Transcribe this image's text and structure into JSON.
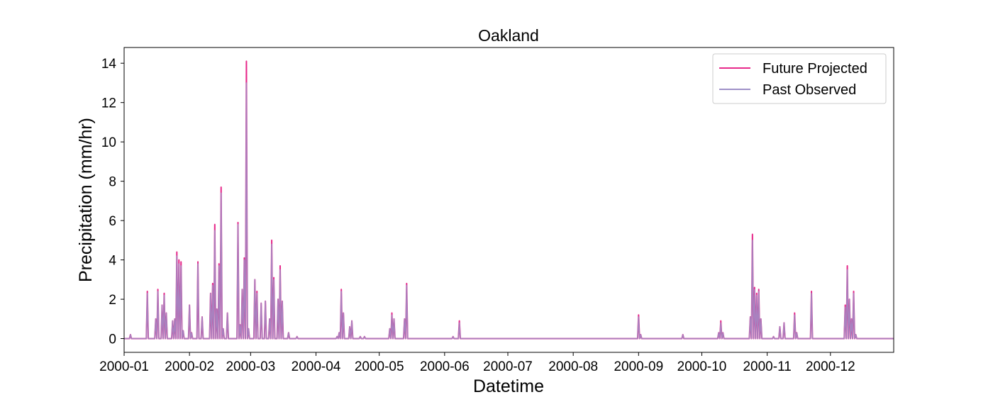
{
  "chart_data": {
    "type": "line",
    "title": "Oakland",
    "xlabel": "Datetime",
    "ylabel": "Precipitation (mm/hr)",
    "x_axis": {
      "type": "date",
      "range": [
        "2000-01-01",
        "2000-12-31"
      ],
      "tick_labels": [
        "2000-01",
        "2000-02",
        "2000-03",
        "2000-04",
        "2000-05",
        "2000-06",
        "2000-07",
        "2000-08",
        "2000-09",
        "2000-10",
        "2000-11",
        "2000-12"
      ]
    },
    "y_axis": {
      "range": [
        -0.7,
        14.8
      ],
      "ticks": [
        0,
        2,
        4,
        6,
        8,
        10,
        12,
        14
      ]
    },
    "grid": false,
    "legend": {
      "placement": "top-right"
    },
    "series": [
      {
        "name": "Future Projected",
        "color": "#e7298a",
        "spikes": [
          [
            "2000-01-04",
            0.2
          ],
          [
            "2000-01-12",
            2.4
          ],
          [
            "2000-01-16",
            1.0
          ],
          [
            "2000-01-17",
            2.5
          ],
          [
            "2000-01-19",
            1.7
          ],
          [
            "2000-01-20",
            2.3
          ],
          [
            "2000-01-21",
            1.3
          ],
          [
            "2000-01-24",
            0.9
          ],
          [
            "2000-01-25",
            1.0
          ],
          [
            "2000-01-26",
            4.4
          ],
          [
            "2000-01-27",
            4.0
          ],
          [
            "2000-01-28",
            3.9
          ],
          [
            "2000-01-29",
            0.4
          ],
          [
            "2000-02-01",
            1.7
          ],
          [
            "2000-02-02",
            0.3
          ],
          [
            "2000-02-05",
            3.9
          ],
          [
            "2000-02-07",
            1.1
          ],
          [
            "2000-02-11",
            2.3
          ],
          [
            "2000-02-12",
            2.8
          ],
          [
            "2000-02-13",
            5.8
          ],
          [
            "2000-02-14",
            1.5
          ],
          [
            "2000-02-15",
            3.8
          ],
          [
            "2000-02-16",
            7.7
          ],
          [
            "2000-02-17",
            0.5
          ],
          [
            "2000-02-19",
            1.3
          ],
          [
            "2000-02-24",
            5.9
          ],
          [
            "2000-02-25",
            0.7
          ],
          [
            "2000-02-26",
            2.5
          ],
          [
            "2000-02-27",
            4.1
          ],
          [
            "2000-02-28",
            14.1
          ],
          [
            "2000-02-29",
            0.5
          ],
          [
            "2000-03-03",
            3.0
          ],
          [
            "2000-03-04",
            2.4
          ],
          [
            "2000-03-06",
            1.8
          ],
          [
            "2000-03-08",
            1.9
          ],
          [
            "2000-03-10",
            1.0
          ],
          [
            "2000-03-11",
            5.0
          ],
          [
            "2000-03-12",
            3.1
          ],
          [
            "2000-03-14",
            2.0
          ],
          [
            "2000-03-15",
            3.7
          ],
          [
            "2000-03-16",
            1.9
          ],
          [
            "2000-03-19",
            0.3
          ],
          [
            "2000-03-23",
            0.1
          ],
          [
            "2000-04-11",
            0.1
          ],
          [
            "2000-04-12",
            0.3
          ],
          [
            "2000-04-13",
            2.5
          ],
          [
            "2000-04-14",
            1.3
          ],
          [
            "2000-04-17",
            0.6
          ],
          [
            "2000-04-18",
            0.9
          ],
          [
            "2000-04-22",
            0.1
          ],
          [
            "2000-04-24",
            0.1
          ],
          [
            "2000-05-06",
            0.5
          ],
          [
            "2000-05-07",
            1.3
          ],
          [
            "2000-05-08",
            1.0
          ],
          [
            "2000-05-13",
            1.0
          ],
          [
            "2000-05-14",
            2.8
          ],
          [
            "2000-06-05",
            0.1
          ],
          [
            "2000-06-08",
            0.9
          ],
          [
            "2000-09-01",
            1.2
          ],
          [
            "2000-09-02",
            0.2
          ],
          [
            "2000-09-22",
            0.2
          ],
          [
            "2000-10-09",
            0.3
          ],
          [
            "2000-10-10",
            0.9
          ],
          [
            "2000-10-11",
            0.3
          ],
          [
            "2000-10-24",
            1.1
          ],
          [
            "2000-10-25",
            5.3
          ],
          [
            "2000-10-26",
            2.6
          ],
          [
            "2000-10-27",
            2.3
          ],
          [
            "2000-10-28",
            2.5
          ],
          [
            "2000-10-29",
            1.0
          ],
          [
            "2000-11-04",
            0.1
          ],
          [
            "2000-11-07",
            0.6
          ],
          [
            "2000-11-09",
            0.8
          ],
          [
            "2000-11-14",
            1.3
          ],
          [
            "2000-11-15",
            0.3
          ],
          [
            "2000-11-22",
            2.4
          ],
          [
            "2000-12-08",
            1.7
          ],
          [
            "2000-12-09",
            3.7
          ],
          [
            "2000-12-10",
            2.0
          ],
          [
            "2000-12-11",
            1.0
          ],
          [
            "2000-12-12",
            2.4
          ],
          [
            "2000-12-13",
            0.2
          ]
        ]
      },
      {
        "name": "Past Observed",
        "color": "#9e90c8",
        "spikes": [
          [
            "2000-01-04",
            0.2
          ],
          [
            "2000-01-12",
            2.3
          ],
          [
            "2000-01-16",
            1.0
          ],
          [
            "2000-01-17",
            2.4
          ],
          [
            "2000-01-19",
            1.7
          ],
          [
            "2000-01-20",
            2.2
          ],
          [
            "2000-01-21",
            1.3
          ],
          [
            "2000-01-24",
            0.9
          ],
          [
            "2000-01-25",
            1.0
          ],
          [
            "2000-01-26",
            4.2
          ],
          [
            "2000-01-27",
            3.8
          ],
          [
            "2000-01-28",
            3.7
          ],
          [
            "2000-01-29",
            0.4
          ],
          [
            "2000-02-01",
            1.7
          ],
          [
            "2000-02-02",
            0.3
          ],
          [
            "2000-02-05",
            3.8
          ],
          [
            "2000-02-07",
            1.1
          ],
          [
            "2000-02-11",
            2.3
          ],
          [
            "2000-02-12",
            2.7
          ],
          [
            "2000-02-13",
            5.5
          ],
          [
            "2000-02-14",
            1.5
          ],
          [
            "2000-02-15",
            3.7
          ],
          [
            "2000-02-16",
            7.4
          ],
          [
            "2000-02-17",
            0.5
          ],
          [
            "2000-02-19",
            1.3
          ],
          [
            "2000-02-24",
            5.8
          ],
          [
            "2000-02-25",
            0.7
          ],
          [
            "2000-02-26",
            2.5
          ],
          [
            "2000-02-27",
            4.0
          ],
          [
            "2000-02-28",
            13.0
          ],
          [
            "2000-02-29",
            0.5
          ],
          [
            "2000-03-03",
            3.0
          ],
          [
            "2000-03-04",
            2.3
          ],
          [
            "2000-03-06",
            1.8
          ],
          [
            "2000-03-08",
            1.9
          ],
          [
            "2000-03-10",
            1.0
          ],
          [
            "2000-03-11",
            4.8
          ],
          [
            "2000-03-12",
            3.0
          ],
          [
            "2000-03-14",
            2.0
          ],
          [
            "2000-03-15",
            3.5
          ],
          [
            "2000-03-16",
            1.9
          ],
          [
            "2000-03-19",
            0.3
          ],
          [
            "2000-03-23",
            0.1
          ],
          [
            "2000-04-11",
            0.1
          ],
          [
            "2000-04-12",
            0.3
          ],
          [
            "2000-04-13",
            2.4
          ],
          [
            "2000-04-14",
            1.3
          ],
          [
            "2000-04-17",
            0.6
          ],
          [
            "2000-04-18",
            0.9
          ],
          [
            "2000-04-22",
            0.1
          ],
          [
            "2000-04-24",
            0.1
          ],
          [
            "2000-05-06",
            0.5
          ],
          [
            "2000-05-07",
            1.2
          ],
          [
            "2000-05-08",
            1.0
          ],
          [
            "2000-05-13",
            1.0
          ],
          [
            "2000-05-14",
            2.7
          ],
          [
            "2000-06-05",
            0.1
          ],
          [
            "2000-06-08",
            0.8
          ],
          [
            "2000-09-01",
            1.1
          ],
          [
            "2000-09-02",
            0.2
          ],
          [
            "2000-09-22",
            0.2
          ],
          [
            "2000-10-09",
            0.3
          ],
          [
            "2000-10-10",
            0.8
          ],
          [
            "2000-10-11",
            0.3
          ],
          [
            "2000-10-24",
            1.1
          ],
          [
            "2000-10-25",
            5.0
          ],
          [
            "2000-10-26",
            2.5
          ],
          [
            "2000-10-27",
            2.2
          ],
          [
            "2000-10-28",
            2.4
          ],
          [
            "2000-10-29",
            1.0
          ],
          [
            "2000-11-04",
            0.1
          ],
          [
            "2000-11-07",
            0.6
          ],
          [
            "2000-11-09",
            0.8
          ],
          [
            "2000-11-14",
            1.2
          ],
          [
            "2000-11-15",
            0.3
          ],
          [
            "2000-11-22",
            2.3
          ],
          [
            "2000-12-08",
            1.6
          ],
          [
            "2000-12-09",
            3.5
          ],
          [
            "2000-12-10",
            2.0
          ],
          [
            "2000-12-11",
            1.0
          ],
          [
            "2000-12-12",
            2.3
          ],
          [
            "2000-12-13",
            0.2
          ]
        ]
      }
    ]
  }
}
